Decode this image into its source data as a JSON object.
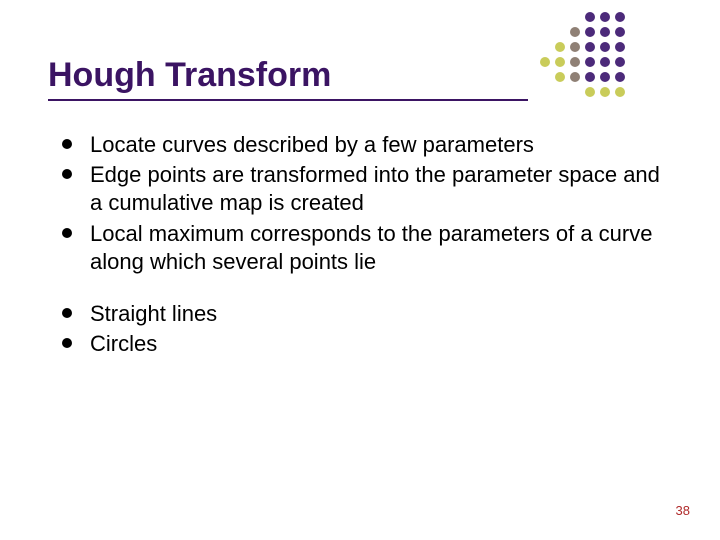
{
  "slide": {
    "title": "Hough Transform",
    "title_color": "#3b1463",
    "title_fontsize": 34,
    "underline_color": "#3b1463",
    "body_fontsize": 22,
    "body_color": "#000000",
    "bullet_color": "#000000",
    "background_color": "#ffffff",
    "pagenum": "38",
    "pagenum_color": "#b02a2a",
    "groups": [
      {
        "items": [
          "Locate curves described by a few parameters",
          "Edge points are transformed into the parameter space and a cumulative map is created",
          "Local maximum corresponds to the parameters of a curve along which several points lie"
        ]
      },
      {
        "items": [
          "Straight lines",
          "Circles"
        ]
      }
    ],
    "dot_grid": {
      "rows": 6,
      "cols": 6,
      "row_colors": [
        [
          "",
          "",
          "",
          "#4c2a7a",
          "#4c2a7a",
          "#4c2a7a"
        ],
        [
          "",
          "",
          "#8f8075",
          "#4c2a7a",
          "#4c2a7a",
          "#4c2a7a"
        ],
        [
          "",
          "#c9cc5a",
          "#8f8075",
          "#4c2a7a",
          "#4c2a7a",
          "#4c2a7a"
        ],
        [
          "#c9cc5a",
          "#c9cc5a",
          "#8f8075",
          "#4c2a7a",
          "#4c2a7a",
          "#4c2a7a"
        ],
        [
          "",
          "#c9cc5a",
          "#8f8075",
          "#4c2a7a",
          "#4c2a7a",
          "#4c2a7a"
        ],
        [
          "",
          "",
          "",
          "#c9cc5a",
          "#c9cc5a",
          "#c9cc5a"
        ]
      ]
    }
  }
}
